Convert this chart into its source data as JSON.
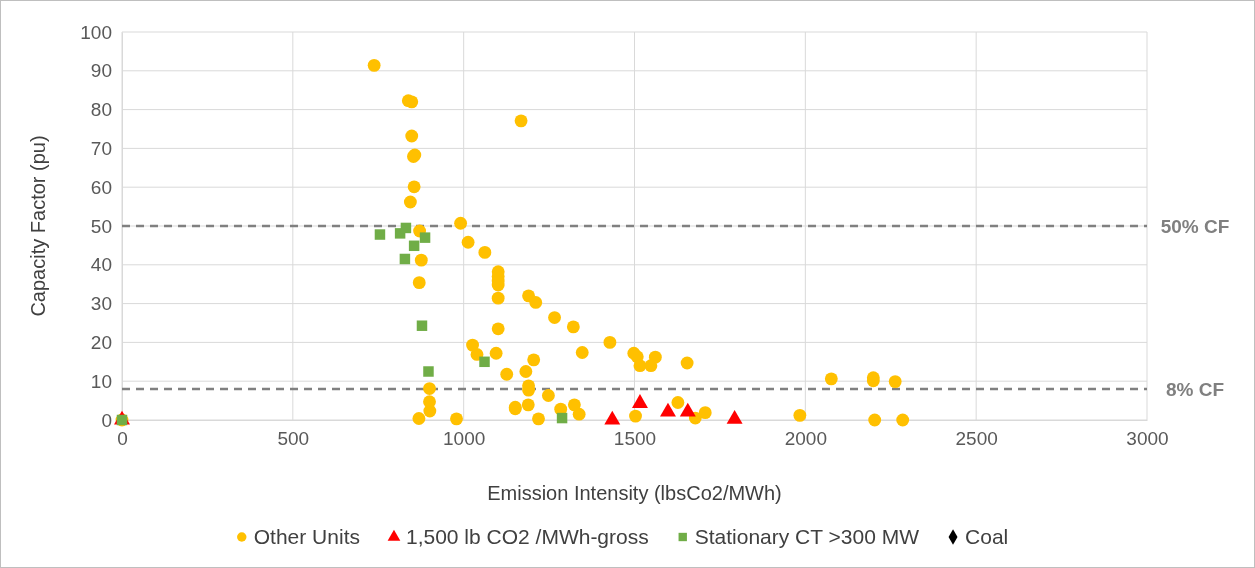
{
  "chart_data": {
    "type": "scatter",
    "xlabel": "Emission Intensity (lbsCo2/MWh)",
    "ylabel": "Capacity Factor (pu)",
    "xlim": [
      0,
      3000
    ],
    "xticks": [
      0,
      500,
      1000,
      1500,
      2000,
      2500,
      3000
    ],
    "ylim": [
      0,
      100
    ],
    "yticks": [
      0,
      10,
      20,
      30,
      40,
      50,
      60,
      70,
      80,
      90,
      100
    ],
    "grid": true,
    "legend": "bottom",
    "ref_lines": [
      {
        "axis": "y",
        "value": 50,
        "label": "50% CF",
        "color": "#808080",
        "line_style": "dashed"
      },
      {
        "axis": "y",
        "value": 8,
        "label": "8% CF",
        "color": "#808080",
        "line_style": "dashed"
      }
    ],
    "series": [
      {
        "name": "Other Units",
        "color": "#ffc000",
        "marker": "circle",
        "x": [
          0,
          738,
          838,
          848,
          848,
          853,
          857,
          855,
          844,
          871,
          876,
          870,
          991,
          1013,
          1062,
          1101,
          1101,
          1101,
          1101,
          1101,
          1168,
          1190,
          1211,
          1266,
          1321,
          1101,
          1026,
          1039,
          1095,
          1347,
          1428,
          1205,
          1182,
          1126,
          1190,
          1190,
          900,
          900,
          901,
          869,
          979,
          1151,
          1151,
          1189,
          1248,
          1219,
          1284,
          1324,
          1338,
          1498,
          1508,
          1516,
          1548,
          1561,
          1654,
          1627,
          1503,
          1678,
          1707,
          1984,
          2076,
          2199,
          2199,
          2263,
          2203,
          2285
        ],
        "values": [
          0,
          91.4,
          82.3,
          82,
          73.2,
          67.9,
          68.3,
          60.1,
          56.2,
          48.7,
          41.2,
          35.4,
          50.7,
          45.8,
          43.2,
          38.2,
          37,
          35.8,
          34.8,
          31.4,
          77.1,
          32,
          30.3,
          26.4,
          24,
          23.5,
          19.3,
          16.9,
          17.2,
          17.4,
          20,
          15.5,
          12.5,
          11.8,
          8.8,
          7.7,
          8.1,
          4.7,
          2.3,
          0.4,
          0.3,
          2.9,
          3.3,
          3.9,
          6.3,
          0.3,
          2.8,
          3.9,
          1.5,
          17.2,
          16.3,
          14,
          14,
          16.2,
          14.7,
          4.5,
          1,
          0.5,
          1.9,
          1.2,
          10.6,
          10.9,
          10.1,
          9.9,
          0,
          0
        ]
      },
      {
        "name": "1,500 lb CO2 /MWh-gross",
        "color": "#ff0000",
        "marker": "triangle",
        "x": [
          0,
          1435,
          1516,
          1598,
          1656,
          1793
        ],
        "values": [
          0,
          0,
          4.3,
          2.1,
          2.1,
          0.2
        ]
      },
      {
        "name": "Stationary CT >300 MW",
        "color": "#70ad47",
        "marker": "square",
        "x": [
          0,
          755,
          814,
          831,
          887,
          855,
          828,
          878,
          897,
          1061,
          1288
        ],
        "values": [
          0,
          47.8,
          48.1,
          49.5,
          47,
          44.9,
          41.5,
          24.3,
          12.5,
          15,
          0.5
        ]
      },
      {
        "name": "Coal",
        "color": "#000000",
        "marker": "diamond"
      }
    ]
  }
}
